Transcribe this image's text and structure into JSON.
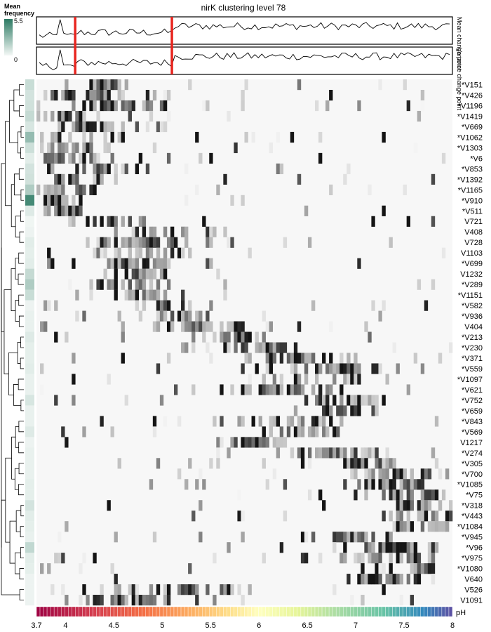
{
  "chart_data": {
    "type": "heatmap",
    "title": "nirK clustering level 78",
    "legend": {
      "title_line1": "Mean",
      "title_line2": "frequency",
      "max_label": "5.5",
      "min_label": "0",
      "range": [
        0,
        5.5
      ]
    },
    "top_tracks": [
      {
        "label": "Mean change point"
      },
      {
        "label": "Variance change point"
      }
    ],
    "change_points_ph": [
      4.1,
      5.1
    ],
    "row_labels": [
      "*V151",
      "*V426",
      "*V1196",
      "*V1419",
      "*V669",
      "*V1062",
      "*V1303",
      "*V6",
      "*V853",
      "*V1392",
      "*V1165",
      "*V910",
      "*V511",
      "V721",
      "V408",
      "V728",
      "V1103",
      "*V699",
      "V1232",
      "*V289",
      "*V1151",
      "*V582",
      "*V936",
      "V404",
      "*V213",
      "*V230",
      "*V371",
      "*V559",
      "*V1097",
      "*V621",
      "*V752",
      "*V659",
      "*V843",
      "*V569",
      "V1217",
      "*V274",
      "*V305",
      "*V700",
      "*V1085",
      "*V75",
      "*V318",
      "*V443",
      "*V1084",
      "*V945",
      "*V96",
      "*V975",
      "*V1080",
      "V640",
      "V526",
      "V1091"
    ],
    "row_mean_frequency": [
      1.2,
      0.9,
      1.0,
      1.3,
      0.8,
      2.6,
      1.1,
      0.5,
      0.9,
      1.0,
      1.9,
      4.8,
      0.6,
      0.1,
      0.2,
      0.5,
      0.4,
      0.5,
      1.3,
      1.9,
      1.2,
      0.2,
      0.3,
      0.3,
      0.6,
      0.4,
      0.4,
      0.5,
      0.3,
      0.3,
      0.8,
      0.3,
      0.3,
      0.6,
      0.2,
      0.3,
      0.3,
      0.3,
      0.4,
      0.4,
      0.9,
      0.5,
      0.4,
      0.3,
      1.4,
      0.5,
      0.4,
      0.2,
      0.2,
      0.2
    ],
    "row_peak_ph": [
      4.4,
      4.2,
      4.6,
      3.9,
      4.3,
      3.9,
      4.2,
      4.0,
      4.3,
      4.1,
      3.9,
      3.9,
      4.0,
      4.6,
      5.1,
      4.8,
      4.9,
      4.7,
      4.8,
      4.7,
      4.9,
      5.0,
      5.2,
      5.4,
      5.8,
      6.0,
      6.4,
      6.9,
      6.6,
      6.2,
      6.8,
      6.9,
      6.3,
      6.5,
      6.0,
      6.7,
      7.0,
      7.4,
      7.3,
      7.5,
      7.8,
      7.8,
      7.8,
      7.0,
      7.5,
      7.4,
      7.7,
      7.3,
      5.3,
      4.8
    ],
    "colorbar": {
      "label": "pH",
      "range": [
        3.7,
        8
      ],
      "ticks": [
        "3.7",
        "4",
        "4.5",
        "5",
        "5.5",
        "6",
        "6.5",
        "7",
        "7.5",
        "8"
      ]
    },
    "colors": {
      "change_point_line": "#e8251f",
      "legend_high": "#2c7a63",
      "legend_low": "#f4f8f6",
      "cell_max": "#111111"
    }
  }
}
